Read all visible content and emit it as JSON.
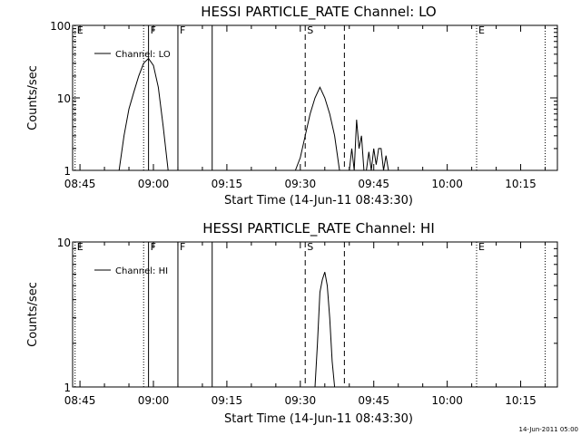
{
  "chart_data": [
    {
      "type": "line",
      "title": "HESSI PARTICLE_RATE Channel: LO",
      "xlabel": "Start Time (14-Jun-11 08:43:30)",
      "ylabel": "Counts/sec",
      "yscale": "log",
      "xlim": [
        "08:43:30",
        "10:22:30"
      ],
      "ylim": [
        1,
        100
      ],
      "xticks": [
        "08:45",
        "09:00",
        "09:15",
        "09:30",
        "09:45",
        "10:00",
        "10:15"
      ],
      "yticks": [
        "1",
        "10",
        "100"
      ],
      "grid": false,
      "legend": {
        "position": "top-left",
        "entries": [
          "Channel: LO"
        ]
      },
      "markers": [
        {
          "time": "08:44:00",
          "style": "dotted",
          "label": "E"
        },
        {
          "time": "08:58:00",
          "style": "dotted",
          "label": ""
        },
        {
          "time": "08:59:00",
          "style": "solid",
          "label": "F"
        },
        {
          "time": "09:05:00",
          "style": "solid",
          "label": "F"
        },
        {
          "time": "09:12:00",
          "style": "solid",
          "label": ""
        },
        {
          "time": "09:31:00",
          "style": "dashed",
          "label": "S"
        },
        {
          "time": "09:39:00",
          "style": "dashed",
          "label": ""
        },
        {
          "time": "10:06:00",
          "style": "dotted",
          "label": "E"
        },
        {
          "time": "10:20:00",
          "style": "dotted",
          "label": ""
        }
      ],
      "series": [
        {
          "name": "Channel: LO",
          "segments": [
            {
              "x": [
                "08:53:00",
                "08:54:00",
                "08:55:00",
                "08:56:00",
                "08:57:00",
                "08:58:00",
                "08:59:00",
                "09:00:00",
                "09:01:00",
                "09:02:00",
                "09:03:00"
              ],
              "y": [
                1,
                3,
                7,
                12,
                20,
                30,
                35,
                28,
                14,
                4,
                1
              ]
            },
            {
              "x": [
                "09:29:00",
                "09:30:00",
                "09:31:00",
                "09:32:00",
                "09:33:00",
                "09:34:00",
                "09:35:00",
                "09:36:00",
                "09:37:00",
                "09:38:00"
              ],
              "y": [
                1,
                1.5,
                3,
                6,
                10,
                14,
                10,
                6,
                3,
                1
              ]
            },
            {
              "x": [
                "09:40:00",
                "09:40:30",
                "09:41:00",
                "09:41:30",
                "09:42:00",
                "09:42:30",
                "09:43:00",
                "09:43:30",
                "09:44:00",
                "09:44:30",
                "09:45:00",
                "09:45:30",
                "09:46:00",
                "09:46:30",
                "09:47:00",
                "09:47:30",
                "09:48:00"
              ],
              "y": [
                1,
                2,
                1,
                5,
                2,
                3,
                1,
                1,
                1.8,
                1,
                2,
                1.2,
                2,
                2,
                1,
                1.6,
                1
              ]
            }
          ]
        }
      ]
    },
    {
      "type": "line",
      "title": "HESSI PARTICLE_RATE Channel: HI",
      "xlabel": "Start Time (14-Jun-11 08:43:30)",
      "ylabel": "Counts/sec",
      "yscale": "log",
      "xlim": [
        "08:43:30",
        "10:22:30"
      ],
      "ylim": [
        1,
        10
      ],
      "xticks": [
        "08:45",
        "09:00",
        "09:15",
        "09:30",
        "09:45",
        "10:00",
        "10:15"
      ],
      "yticks": [
        "1",
        "10"
      ],
      "grid": false,
      "legend": {
        "position": "top-left",
        "entries": [
          "Channel: HI"
        ]
      },
      "markers": [
        {
          "time": "08:44:00",
          "style": "dotted",
          "label": "E"
        },
        {
          "time": "08:58:00",
          "style": "dotted",
          "label": ""
        },
        {
          "time": "08:59:00",
          "style": "solid",
          "label": "F"
        },
        {
          "time": "09:05:00",
          "style": "solid",
          "label": "F"
        },
        {
          "time": "09:12:00",
          "style": "solid",
          "label": ""
        },
        {
          "time": "09:31:00",
          "style": "dashed",
          "label": "S"
        },
        {
          "time": "09:39:00",
          "style": "dashed",
          "label": ""
        },
        {
          "time": "10:06:00",
          "style": "dotted",
          "label": "E"
        },
        {
          "time": "10:20:00",
          "style": "dotted",
          "label": ""
        }
      ],
      "series": [
        {
          "name": "Channel: HI",
          "segments": [
            {
              "x": [
                "09:33:00",
                "09:33:30",
                "09:34:00",
                "09:34:30",
                "09:35:00",
                "09:35:30",
                "09:36:00",
                "09:36:30",
                "09:37:00"
              ],
              "y": [
                1,
                2,
                4.5,
                5.5,
                6.2,
                5,
                3,
                1.5,
                1
              ]
            }
          ]
        }
      ]
    }
  ],
  "footer": {
    "timestamp": "14-Jun-2011 05:00"
  }
}
